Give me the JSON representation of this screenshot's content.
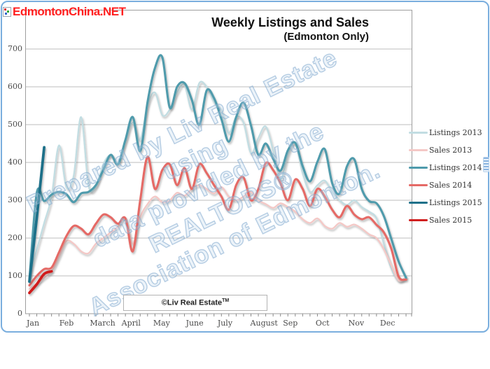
{
  "site_watermark": "EdmontonChina.NET",
  "chart": {
    "title": "Weekly Listings and Sales",
    "subtitle": "(Edmonton Only)",
    "credit_text": "©Liv Real Estate",
    "credit_sup": "TM",
    "watermark_lines": [
      "Prepared by Liv Real Estate",
      "using",
      "data provided by the",
      "REALTORS®",
      "Association of Edmonton."
    ]
  },
  "chart_data": {
    "type": "line",
    "title": "Weekly Listings and Sales (Edmonton Only)",
    "xlabel": "",
    "ylabel": "",
    "x_unit": "week of year",
    "ylim": [
      0,
      700
    ],
    "y_ticks": [
      0,
      100,
      200,
      300,
      400,
      500,
      600,
      700
    ],
    "grid": "horizontal",
    "legend_position": "right",
    "x_tick_labels": [
      "Jan",
      "Feb",
      "March",
      "April",
      "May",
      "June",
      "July",
      "August",
      "Sep",
      "Oct",
      "Nov",
      "Dec"
    ],
    "x_month_start_weeks": [
      0,
      4.43,
      8.57,
      12.86,
      17.14,
      21.57,
      25.86,
      30.29,
      34.71,
      39.14,
      43.57,
      47.86
    ],
    "weeks_total": 52,
    "series": [
      {
        "name": "Listings 2013",
        "color": "#c2dde2",
        "width": 2.3,
        "values": [
          100,
          170,
          240,
          310,
          445,
          335,
          365,
          520,
          340,
          335,
          395,
          420,
          400,
          455,
          505,
          460,
          550,
          585,
          525,
          540,
          585,
          605,
          540,
          610,
          600,
          560,
          538,
          478,
          520,
          505,
          425,
          465,
          495,
          432,
          355,
          420,
          450,
          372,
          322,
          340,
          352,
          322,
          300,
          288,
          300,
          282,
          270,
          252,
          185,
          120,
          88,
          97
        ]
      },
      {
        "name": "Sales 2013",
        "color": "#f4c8c6",
        "width": 2.3,
        "values": [
          65,
          80,
          95,
          112,
          150,
          192,
          185,
          165,
          160,
          185,
          200,
          215,
          230,
          252,
          185,
          255,
          290,
          310,
          295,
          300,
          320,
          312,
          330,
          340,
          330,
          318,
          335,
          310,
          300,
          310,
          322,
          300,
          290,
          280,
          292,
          282,
          270,
          250,
          240,
          252,
          232,
          225,
          240,
          230,
          236,
          225,
          210,
          200,
          170,
          128,
          88,
          95
        ]
      },
      {
        "name": "Listings 2014",
        "color": "#4f9bac",
        "width": 3.1,
        "values": [
          90,
          320,
          298,
          315,
          322,
          316,
          295,
          318,
          322,
          340,
          380,
          420,
          395,
          460,
          520,
          430,
          560,
          650,
          678,
          545,
          600,
          610,
          565,
          500,
          590,
          570,
          515,
          455,
          520,
          558,
          498,
          420,
          450,
          410,
          378,
          432,
          452,
          390,
          350,
          402,
          435,
          345,
          318,
          390,
          408,
          330,
          298,
          292,
          258,
          198,
          138,
          95
        ]
      },
      {
        "name": "Sales 2014",
        "color": "#e56a66",
        "width": 3.1,
        "values": [
          75,
          100,
          118,
          122,
          162,
          205,
          232,
          225,
          210,
          238,
          262,
          255,
          238,
          252,
          165,
          300,
          415,
          330,
          380,
          395,
          340,
          385,
          330,
          395,
          372,
          340,
          310,
          275,
          340,
          360,
          300,
          330,
          398,
          380,
          345,
          300,
          355,
          330,
          285,
          330,
          310,
          275,
          255,
          285,
          262,
          250,
          255,
          235,
          215,
          172,
          98,
          90
        ]
      },
      {
        "name": "Listings 2015",
        "color": "#1d7089",
        "width": 3.8,
        "values": [
          85,
          255,
          440
        ]
      },
      {
        "name": "Sales 2015",
        "color": "#d01f1f",
        "width": 3.8,
        "values": [
          55,
          78,
          105,
          112
        ]
      }
    ]
  }
}
